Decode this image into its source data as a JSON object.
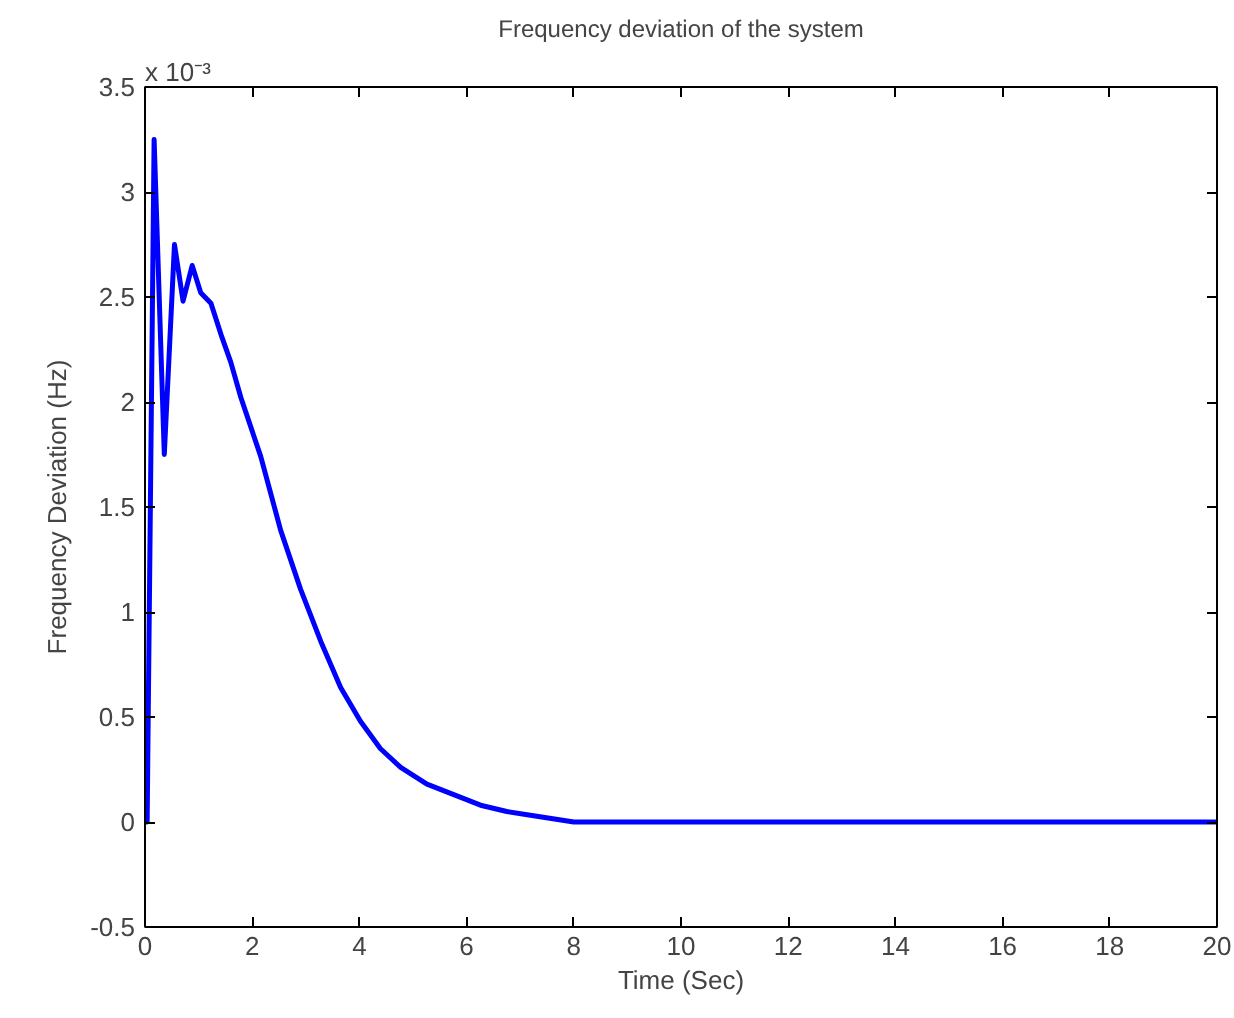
{
  "chart_data": {
    "type": "line",
    "title": "Frequency deviation of the system",
    "xlabel": "Time (Sec)",
    "ylabel": "Frequency Deviation (Hz)",
    "annotations": [
      "x 10⁻³"
    ],
    "x": [
      0,
      0.04,
      0.17,
      0.36,
      0.55,
      0.71,
      0.88,
      1.04,
      1.23,
      1.42,
      1.6,
      1.79,
      2.16,
      2.53,
      2.9,
      3.28,
      3.65,
      4.02,
      4.39,
      4.77,
      5.26,
      5.76,
      6.26,
      6.75,
      7.25,
      8,
      20
    ],
    "series": [
      {
        "color": "#0000ff",
        "values": [
          0,
          0,
          3.25,
          1.75,
          2.75,
          2.48,
          2.65,
          2.52,
          2.47,
          2.32,
          2.19,
          2.02,
          1.74,
          1.39,
          1.11,
          0.86,
          0.64,
          0.48,
          0.35,
          0.26,
          0.18,
          0.13,
          0.08,
          0.05,
          0.03,
          0,
          0
        ]
      }
    ],
    "xlim": [
      0,
      20
    ],
    "ylim": [
      -0.5,
      3.5
    ],
    "xticks": [
      0,
      2,
      4,
      6,
      8,
      10,
      12,
      14,
      16,
      18,
      20
    ],
    "yticks": [
      -0.5,
      0,
      0.5,
      1,
      1.5,
      2,
      2.5,
      3,
      3.5
    ],
    "grid": false,
    "marker": "none",
    "line_style": "solid"
  }
}
